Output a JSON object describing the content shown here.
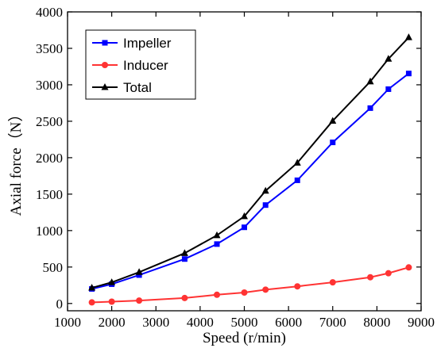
{
  "chart_data": {
    "type": "line",
    "xlabel": "Speed (r/min)",
    "ylabel": "Axial force（N）",
    "xlim": [
      1000,
      9000
    ],
    "ylim": [
      -100,
      4000
    ],
    "xticks": [
      1000,
      2000,
      3000,
      4000,
      5000,
      6000,
      7000,
      8000,
      9000
    ],
    "yticks": [
      0,
      500,
      1000,
      1500,
      2000,
      2500,
      3000,
      3500,
      4000
    ],
    "grid": false,
    "legend_position": "top-left",
    "series": [
      {
        "name": "Impeller",
        "color": "#0000ff",
        "marker": "square",
        "x": [
          1550,
          2000,
          2620,
          3650,
          4380,
          5000,
          5480,
          6200,
          7000,
          7850,
          8260,
          8720
        ],
        "y": [
          200,
          265,
          390,
          610,
          815,
          1045,
          1350,
          1690,
          2210,
          2680,
          2940,
          3155
        ]
      },
      {
        "name": "Inducer",
        "color": "#ff3333",
        "marker": "circle",
        "x": [
          1550,
          2000,
          2620,
          3650,
          4380,
          5000,
          5480,
          6200,
          7000,
          7850,
          8260,
          8720
        ],
        "y": [
          15,
          25,
          40,
          75,
          120,
          150,
          190,
          235,
          290,
          360,
          415,
          495
        ]
      },
      {
        "name": "Total",
        "color": "#000000",
        "marker": "triangle",
        "x": [
          1550,
          2000,
          2620,
          3650,
          4380,
          5000,
          5480,
          6200,
          7000,
          7850,
          8260,
          8720
        ],
        "y": [
          215,
          290,
          430,
          690,
          935,
          1195,
          1545,
          1930,
          2505,
          3045,
          3355,
          3650
        ]
      }
    ]
  }
}
